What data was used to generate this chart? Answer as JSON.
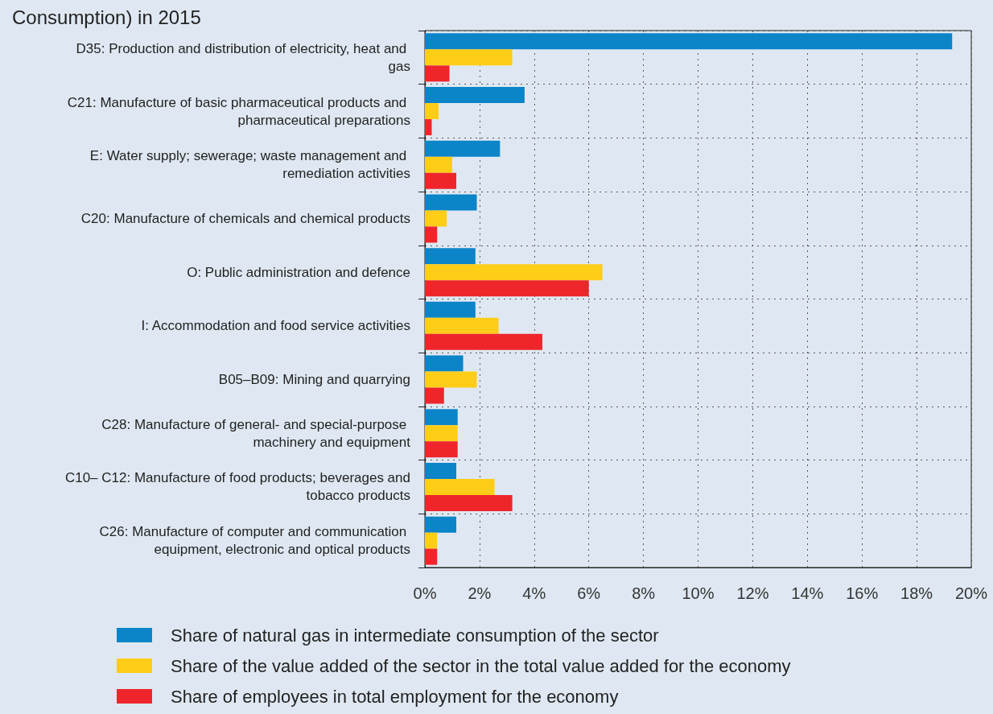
{
  "chart_data": {
    "type": "bar",
    "orientation": "horizontal",
    "title": "Consumption) in 2015",
    "categories": [
      "D35: Production and distribution of electricity, heat and gas",
      "C21: Manufacture of basic pharmaceutical products and pharmaceutical preparations",
      "E: Water supply; sewerage; waste management and remediation activities",
      "C20: Manufacture of chemicals and chemical products",
      "O: Public administration and defence",
      "I: Accommodation and food service activities",
      "B05–B09: Mining and quarrying",
      "C28: Manufacture of general- and special-purpose machinery and equipment",
      "C10– C12: Manufacture of food products; beverages and tobacco products",
      "C26: Manufacture of computer and communication equipment, electronic and optical products"
    ],
    "series": [
      {
        "name": "Share of natural gas in intermediate consumption of the sector",
        "color": "#0c84c8",
        "values": [
          19.3,
          3.65,
          2.75,
          1.9,
          1.85,
          1.85,
          1.4,
          1.2,
          1.15,
          1.15
        ]
      },
      {
        "name": "Share of the value added of the sector in the total value added for the economy",
        "color": "#fecd17",
        "values": [
          3.2,
          0.5,
          1.0,
          0.8,
          6.5,
          2.7,
          1.9,
          1.2,
          2.55,
          0.45
        ]
      },
      {
        "name": "Share of employees in total employment for the economy",
        "color": "#ee262b",
        "values": [
          0.9,
          0.25,
          1.15,
          0.45,
          6.0,
          4.3,
          0.7,
          1.2,
          3.2,
          0.45
        ]
      }
    ],
    "xlim": [
      0,
      20
    ],
    "xticks": [
      {
        "value": 0,
        "label": "0%"
      },
      {
        "value": 2,
        "label": "2%"
      },
      {
        "value": 4,
        "label": "4%"
      },
      {
        "value": 6,
        "label": "6%"
      },
      {
        "value": 8,
        "label": "8%"
      },
      {
        "value": 10,
        "label": "10%"
      },
      {
        "value": 12,
        "label": "12%"
      },
      {
        "value": 14,
        "label": "14%"
      },
      {
        "value": 16,
        "label": "16%"
      },
      {
        "value": 18,
        "label": "18%"
      },
      {
        "value": 20,
        "label": "20%"
      }
    ],
    "grid": true,
    "legend": "bottom"
  }
}
